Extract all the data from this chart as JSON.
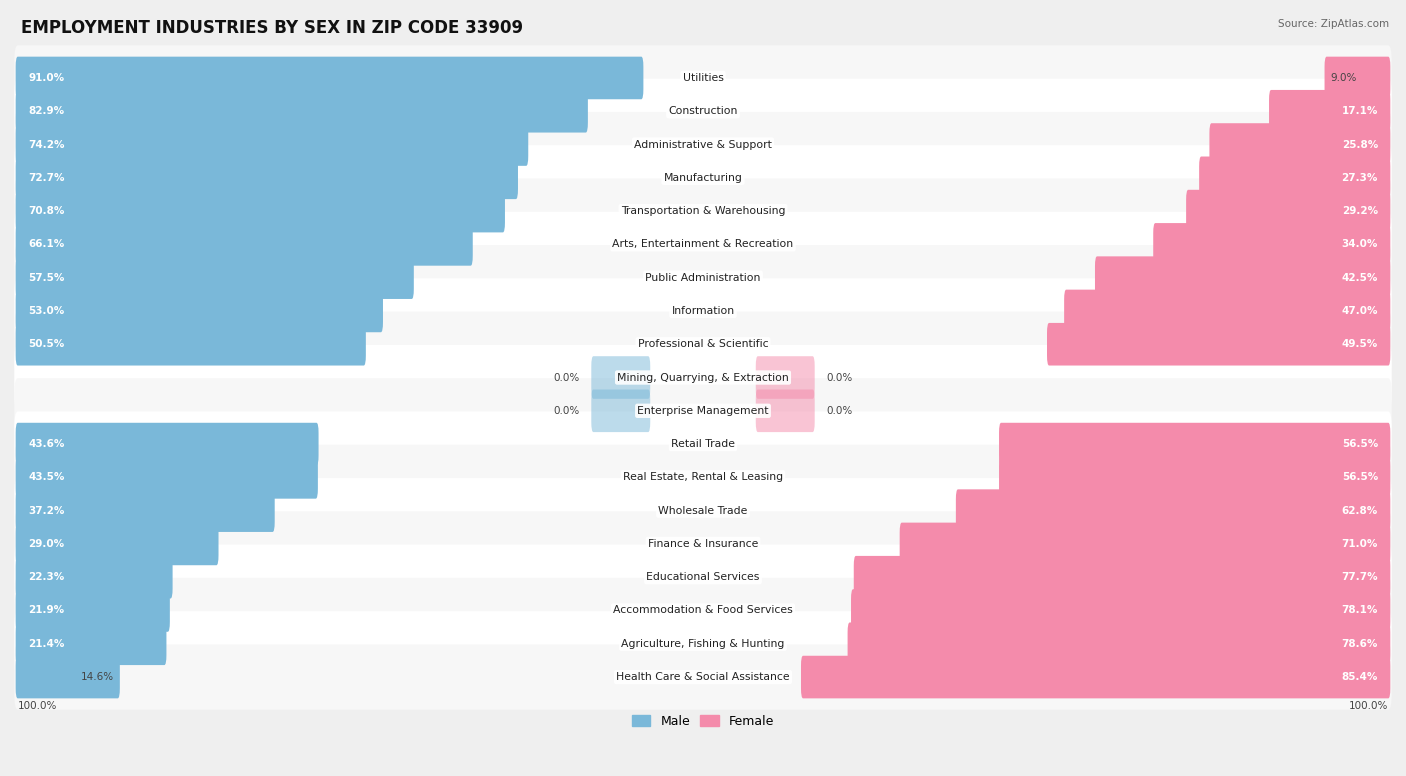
{
  "title": "EMPLOYMENT INDUSTRIES BY SEX IN ZIP CODE 33909",
  "source": "Source: ZipAtlas.com",
  "industries": [
    {
      "name": "Utilities",
      "male": 91.0,
      "female": 9.0
    },
    {
      "name": "Construction",
      "male": 82.9,
      "female": 17.1
    },
    {
      "name": "Administrative & Support",
      "male": 74.2,
      "female": 25.8
    },
    {
      "name": "Manufacturing",
      "male": 72.7,
      "female": 27.3
    },
    {
      "name": "Transportation & Warehousing",
      "male": 70.8,
      "female": 29.2
    },
    {
      "name": "Arts, Entertainment & Recreation",
      "male": 66.1,
      "female": 34.0
    },
    {
      "name": "Public Administration",
      "male": 57.5,
      "female": 42.5
    },
    {
      "name": "Information",
      "male": 53.0,
      "female": 47.0
    },
    {
      "name": "Professional & Scientific",
      "male": 50.5,
      "female": 49.5
    },
    {
      "name": "Mining, Quarrying, & Extraction",
      "male": 0.0,
      "female": 0.0
    },
    {
      "name": "Enterprise Management",
      "male": 0.0,
      "female": 0.0
    },
    {
      "name": "Retail Trade",
      "male": 43.6,
      "female": 56.5
    },
    {
      "name": "Real Estate, Rental & Leasing",
      "male": 43.5,
      "female": 56.5
    },
    {
      "name": "Wholesale Trade",
      "male": 37.2,
      "female": 62.8
    },
    {
      "name": "Finance & Insurance",
      "male": 29.0,
      "female": 71.0
    },
    {
      "name": "Educational Services",
      "male": 22.3,
      "female": 77.7
    },
    {
      "name": "Accommodation & Food Services",
      "male": 21.9,
      "female": 78.1
    },
    {
      "name": "Agriculture, Fishing & Hunting",
      "male": 21.4,
      "female": 78.6
    },
    {
      "name": "Health Care & Social Assistance",
      "male": 14.6,
      "female": 85.4
    }
  ],
  "male_color": "#7ab8d9",
  "female_color": "#f48bab",
  "bg_color": "#efefef",
  "row_light": "#f7f7f7",
  "row_dark": "#ffffff",
  "title_fontsize": 12,
  "label_fontsize": 7.8,
  "pct_fontsize": 7.5,
  "legend_fontsize": 9,
  "bar_height": 0.68
}
